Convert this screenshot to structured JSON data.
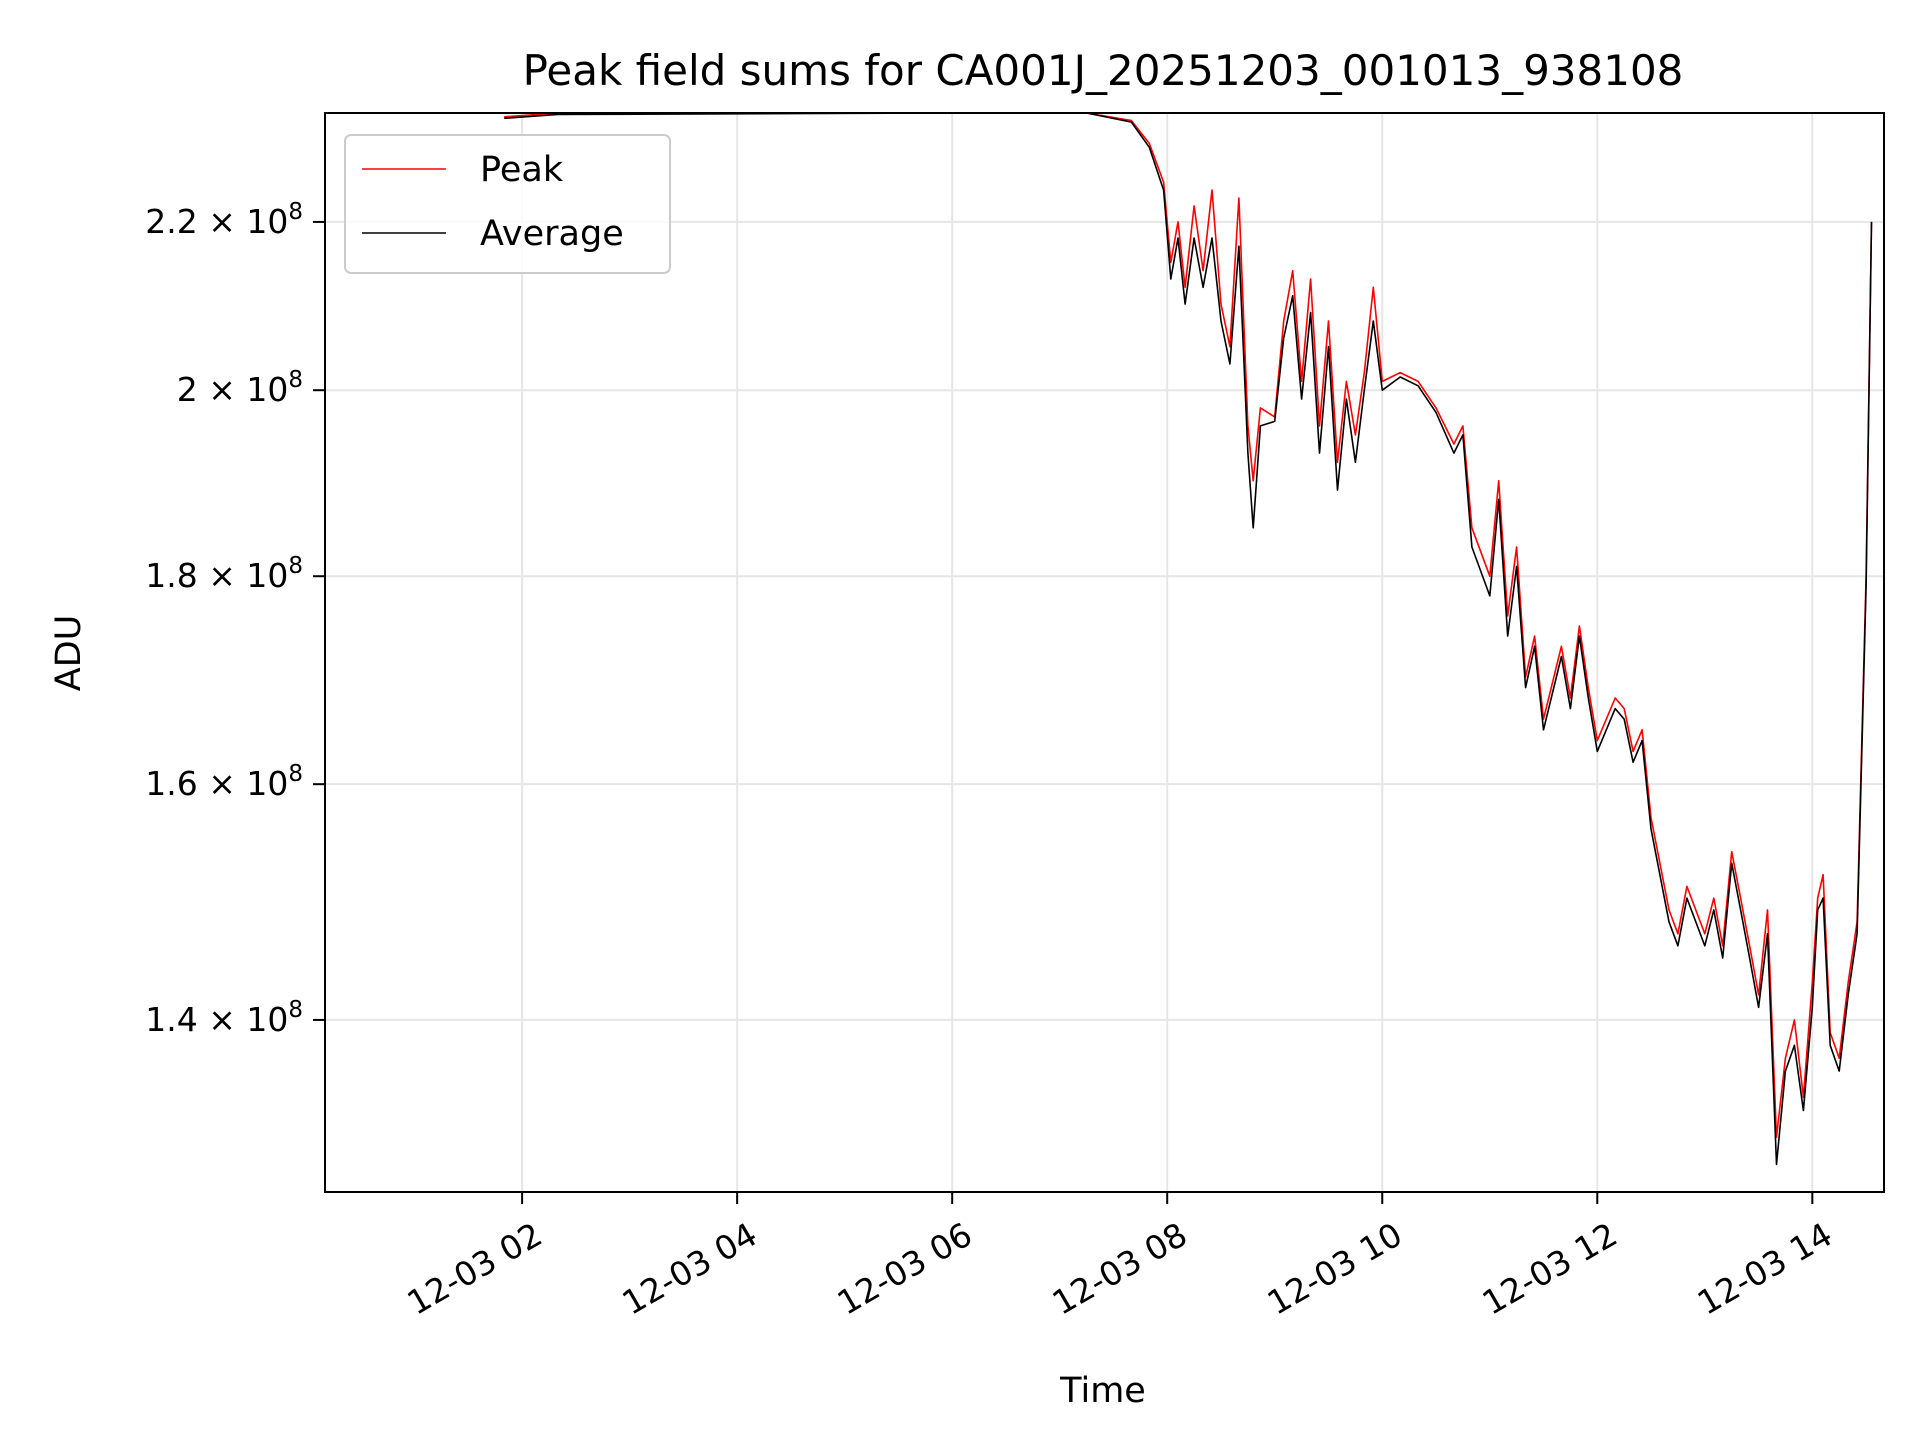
{
  "chart_data": {
    "type": "line",
    "title": "Peak field sums for CA001J_20251203_001013_938108",
    "xlabel": "Time",
    "ylabel": "ADU",
    "yscale": "log",
    "xlim": [
      "2025-12-03 00:10",
      "2025-12-03 14:40"
    ],
    "ylim": [
      127000000,
      234000000
    ],
    "x_ticks": [
      {
        "value": "2025-12-03 02:00",
        "label": "12-03 02"
      },
      {
        "value": "2025-12-03 04:00",
        "label": "12-03 04"
      },
      {
        "value": "2025-12-03 06:00",
        "label": "12-03 06"
      },
      {
        "value": "2025-12-03 08:00",
        "label": "12-03 08"
      },
      {
        "value": "2025-12-03 10:00",
        "label": "12-03 10"
      },
      {
        "value": "2025-12-03 12:00",
        "label": "12-03 12"
      },
      {
        "value": "2025-12-03 14:00",
        "label": "12-03 14"
      }
    ],
    "y_ticks": [
      {
        "value": 140000000,
        "mantissa": "1.4",
        "base": "10",
        "exp": "8"
      },
      {
        "value": 160000000,
        "mantissa": "1.6",
        "base": "10",
        "exp": "8"
      },
      {
        "value": 180000000,
        "mantissa": "1.8",
        "base": "10",
        "exp": "8"
      },
      {
        "value": 200000000,
        "mantissa": "2",
        "base": "10",
        "exp": "8"
      },
      {
        "value": 220000000,
        "mantissa": "2.2",
        "base": "10",
        "exp": "8"
      }
    ],
    "grid": true,
    "legend_position": "top-left",
    "series": [
      {
        "name": "Peak",
        "color": "#ff0000",
        "x": [
          "2025-12-03 01:50",
          "2025-12-03 02:20",
          "2025-12-03 05:50",
          "2025-12-03 06:30",
          "2025-12-03 07:15",
          "2025-12-03 07:40",
          "2025-12-03 07:50",
          "2025-12-03 07:58",
          "2025-12-03 08:02",
          "2025-12-03 08:06",
          "2025-12-03 08:10",
          "2025-12-03 08:15",
          "2025-12-03 08:20",
          "2025-12-03 08:25",
          "2025-12-03 08:30",
          "2025-12-03 08:35",
          "2025-12-03 08:40",
          "2025-12-03 08:45",
          "2025-12-03 08:48",
          "2025-12-03 08:52",
          "2025-12-03 09:00",
          "2025-12-03 09:05",
          "2025-12-03 09:10",
          "2025-12-03 09:15",
          "2025-12-03 09:20",
          "2025-12-03 09:25",
          "2025-12-03 09:30",
          "2025-12-03 09:35",
          "2025-12-03 09:40",
          "2025-12-03 09:45",
          "2025-12-03 09:50",
          "2025-12-03 09:55",
          "2025-12-03 10:00",
          "2025-12-03 10:10",
          "2025-12-03 10:20",
          "2025-12-03 10:30",
          "2025-12-03 10:40",
          "2025-12-03 10:45",
          "2025-12-03 10:50",
          "2025-12-03 11:00",
          "2025-12-03 11:05",
          "2025-12-03 11:10",
          "2025-12-03 11:15",
          "2025-12-03 11:20",
          "2025-12-03 11:25",
          "2025-12-03 11:30",
          "2025-12-03 11:40",
          "2025-12-03 11:45",
          "2025-12-03 11:50",
          "2025-12-03 11:55",
          "2025-12-03 12:00",
          "2025-12-03 12:10",
          "2025-12-03 12:15",
          "2025-12-03 12:20",
          "2025-12-03 12:25",
          "2025-12-03 12:30",
          "2025-12-03 12:40",
          "2025-12-03 12:45",
          "2025-12-03 12:50",
          "2025-12-03 13:00",
          "2025-12-03 13:05",
          "2025-12-03 13:10",
          "2025-12-03 13:15",
          "2025-12-03 13:20",
          "2025-12-03 13:25",
          "2025-12-03 13:30",
          "2025-12-03 13:35",
          "2025-12-03 13:40",
          "2025-12-03 13:45",
          "2025-12-03 13:50",
          "2025-12-03 13:55",
          "2025-12-03 14:00",
          "2025-12-03 14:03",
          "2025-12-03 14:06",
          "2025-12-03 14:10",
          "2025-12-03 14:15",
          "2025-12-03 14:20",
          "2025-12-03 14:25",
          "2025-12-03 14:30",
          "2025-12-03 14:33"
        ],
        "values": [
          233500000,
          234000000,
          234000000,
          234000000,
          234000000,
          233000000,
          230000000,
          225000000,
          215000000,
          220000000,
          212000000,
          222000000,
          214000000,
          224000000,
          210000000,
          205000000,
          223000000,
          196000000,
          190000000,
          198000000,
          197000000,
          208000000,
          214000000,
          201000000,
          213000000,
          196000000,
          208000000,
          192000000,
          201000000,
          195000000,
          202000000,
          212000000,
          201000000,
          202000000,
          201000000,
          198000000,
          194000000,
          196000000,
          185000000,
          180000000,
          190000000,
          176000000,
          183000000,
          170000000,
          174000000,
          166000000,
          173000000,
          168000000,
          175000000,
          169000000,
          164000000,
          168000000,
          167000000,
          163000000,
          165000000,
          157000000,
          149000000,
          147000000,
          151000000,
          147000000,
          150000000,
          146000000,
          154000000,
          150000000,
          146000000,
          142000000,
          149000000,
          131000000,
          137000000,
          140000000,
          134000000,
          143000000,
          150000000,
          152000000,
          139000000,
          137000000,
          143000000,
          148000000,
          180000000,
          220000000
        ]
      },
      {
        "name": "Average",
        "color": "#000000",
        "x": [
          "2025-12-03 01:50",
          "2025-12-03 02:20",
          "2025-12-03 05:50",
          "2025-12-03 06:30",
          "2025-12-03 07:15",
          "2025-12-03 07:40",
          "2025-12-03 07:50",
          "2025-12-03 07:58",
          "2025-12-03 08:02",
          "2025-12-03 08:06",
          "2025-12-03 08:10",
          "2025-12-03 08:15",
          "2025-12-03 08:20",
          "2025-12-03 08:25",
          "2025-12-03 08:30",
          "2025-12-03 08:35",
          "2025-12-03 08:40",
          "2025-12-03 08:45",
          "2025-12-03 08:48",
          "2025-12-03 08:52",
          "2025-12-03 09:00",
          "2025-12-03 09:05",
          "2025-12-03 09:10",
          "2025-12-03 09:15",
          "2025-12-03 09:20",
          "2025-12-03 09:25",
          "2025-12-03 09:30",
          "2025-12-03 09:35",
          "2025-12-03 09:40",
          "2025-12-03 09:45",
          "2025-12-03 09:50",
          "2025-12-03 09:55",
          "2025-12-03 10:00",
          "2025-12-03 10:10",
          "2025-12-03 10:20",
          "2025-12-03 10:30",
          "2025-12-03 10:40",
          "2025-12-03 10:45",
          "2025-12-03 10:50",
          "2025-12-03 11:00",
          "2025-12-03 11:05",
          "2025-12-03 11:10",
          "2025-12-03 11:15",
          "2025-12-03 11:20",
          "2025-12-03 11:25",
          "2025-12-03 11:30",
          "2025-12-03 11:40",
          "2025-12-03 11:45",
          "2025-12-03 11:50",
          "2025-12-03 11:55",
          "2025-12-03 12:00",
          "2025-12-03 12:10",
          "2025-12-03 12:15",
          "2025-12-03 12:20",
          "2025-12-03 12:25",
          "2025-12-03 12:30",
          "2025-12-03 12:40",
          "2025-12-03 12:45",
          "2025-12-03 12:50",
          "2025-12-03 13:00",
          "2025-12-03 13:05",
          "2025-12-03 13:10",
          "2025-12-03 13:15",
          "2025-12-03 13:20",
          "2025-12-03 13:25",
          "2025-12-03 13:30",
          "2025-12-03 13:35",
          "2025-12-03 13:40",
          "2025-12-03 13:45",
          "2025-12-03 13:50",
          "2025-12-03 13:55",
          "2025-12-03 14:00",
          "2025-12-03 14:03",
          "2025-12-03 14:06",
          "2025-12-03 14:10",
          "2025-12-03 14:15",
          "2025-12-03 14:20",
          "2025-12-03 14:25",
          "2025-12-03 14:30",
          "2025-12-03 14:33"
        ],
        "values": [
          233300000,
          233800000,
          234000000,
          234000000,
          234000000,
          232800000,
          229500000,
          224000000,
          213000000,
          218000000,
          210000000,
          218000000,
          212000000,
          218000000,
          208000000,
          203000000,
          217000000,
          193000000,
          185000000,
          196000000,
          196500000,
          206000000,
          211000000,
          199000000,
          209000000,
          193000000,
          205000000,
          189000000,
          199000000,
          192000000,
          200000000,
          208000000,
          200000000,
          201500000,
          200500000,
          197500000,
          193000000,
          195000000,
          183000000,
          178000000,
          188000000,
          174000000,
          181000000,
          169000000,
          173000000,
          165000000,
          172000000,
          167000000,
          174000000,
          168000000,
          163000000,
          167000000,
          166000000,
          162000000,
          164000000,
          156000000,
          148000000,
          146000000,
          150000000,
          146000000,
          149000000,
          145000000,
          153000000,
          149000000,
          145000000,
          141000000,
          147000000,
          129000000,
          136000000,
          138000000,
          133000000,
          141000000,
          149000000,
          150000000,
          138000000,
          136000000,
          142000000,
          147000000,
          179000000,
          220000000
        ]
      }
    ]
  }
}
